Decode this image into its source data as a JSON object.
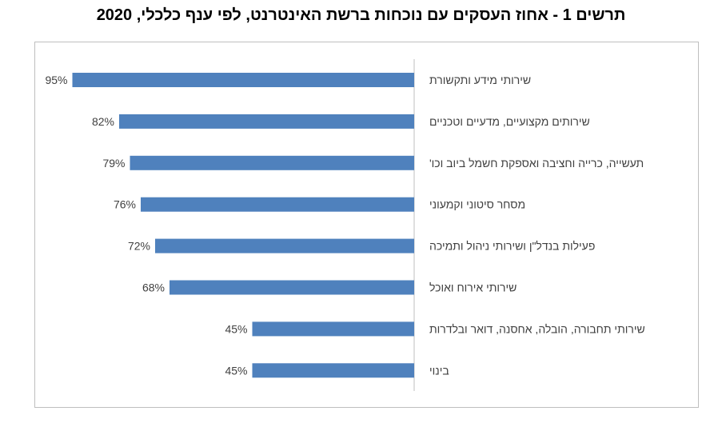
{
  "title": "תרשים 1 - אחוז העסקים עם נוכחות ברשת האינטרנט, לפי ענף כלכלי, 2020",
  "chart_data": {
    "type": "bar",
    "orientation": "horizontal",
    "direction": "rtl",
    "title": "תרשים 1 - אחוז העסקים עם נוכחות ברשת האינטרנט, לפי ענף כלכלי, 2020",
    "categories": [
      "שירותי מידע ותקשורת",
      "שירותים מקצועיים, מדעיים וטכניים",
      "תעשייה, כרייה וחציבה ואספקת חשמל ביוב וכו'",
      "מסחר סיטוני וקמעוני",
      "פעילות בנדל\"ן ושירותי ניהול ותמיכה",
      "שירותי אירוח ואוכל",
      "שירותי תחבורה, הובלה, אחסנה, דואר ובלדרות",
      "בינוי"
    ],
    "values": [
      95,
      82,
      79,
      76,
      72,
      68,
      45,
      45
    ],
    "data_labels": [
      "95%",
      "82%",
      "79%",
      "76%",
      "72%",
      "68%",
      "45%",
      "45%"
    ],
    "unit": "%",
    "xlim": [
      0,
      100
    ],
    "bar_color": "#4F81BD",
    "axis_color": "#BFBFBF",
    "grid": false,
    "legend": "none"
  }
}
